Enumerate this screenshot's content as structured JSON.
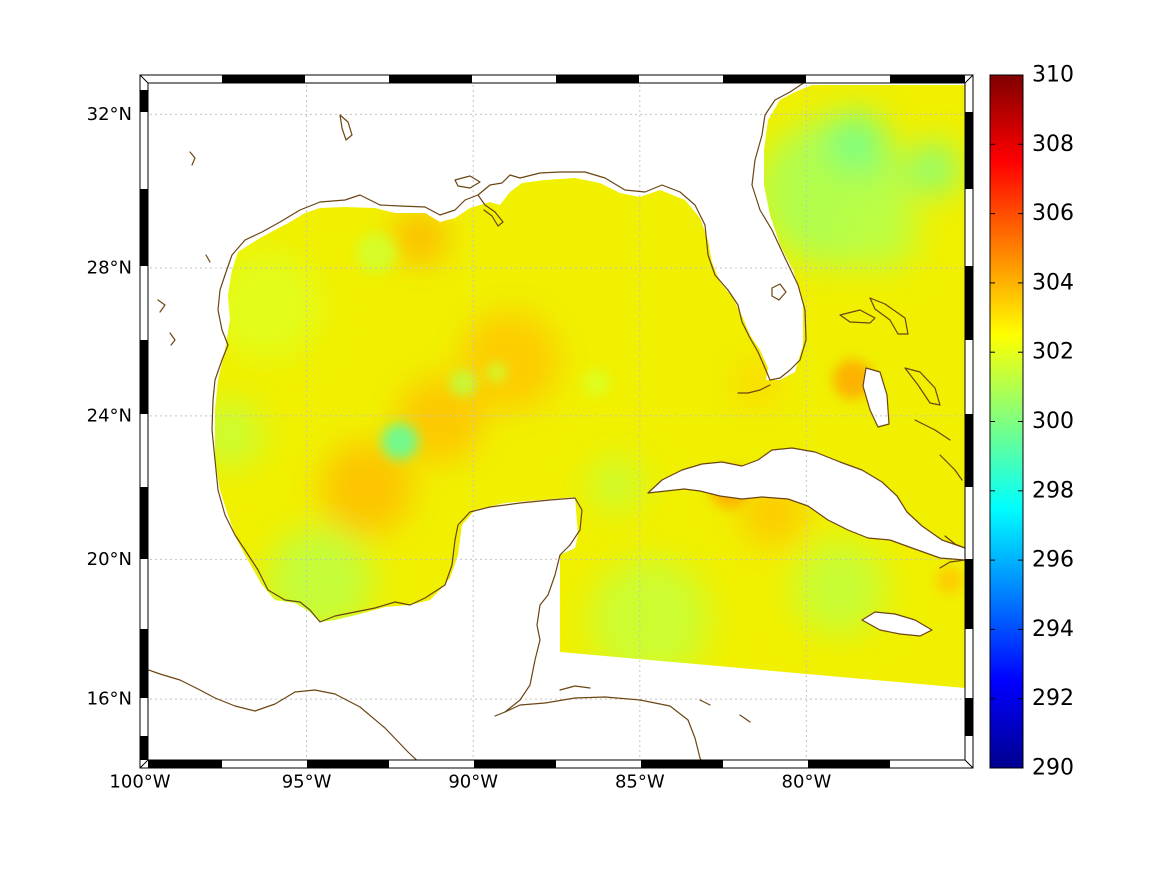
{
  "chart_data": {
    "type": "heatmap",
    "projection": "mercator",
    "x_range": [
      -100,
      -75
    ],
    "y_range": [
      14,
      33
    ],
    "x_ticks": [
      -100,
      -95,
      -90,
      -85,
      -80
    ],
    "x_tick_labels": [
      "100°W",
      "95°W",
      "90°W",
      "85°W",
      "80°W"
    ],
    "y_ticks": [
      32,
      28,
      24,
      20,
      16
    ],
    "y_tick_labels": [
      "32°N",
      "28°N",
      "24°N",
      "20°N",
      "16°N"
    ],
    "grid": true,
    "colorbar": {
      "colormap": "jet",
      "placement": "right",
      "min": 290,
      "max": 310,
      "ticks": [
        310,
        308,
        306,
        304,
        302,
        300,
        298,
        296,
        294,
        292,
        290
      ],
      "tick_labels": [
        "310",
        "308",
        "306",
        "304",
        "302",
        "300",
        "298",
        "296",
        "294",
        "292",
        "290"
      ]
    },
    "field_samples": [
      {
        "lon": -79.2,
        "lat": 30.0,
        "value": 300.8,
        "radius_deg": 2.2
      },
      {
        "lon": -96.2,
        "lat": 27.0,
        "value": 301.9,
        "radius_deg": 1.6
      },
      {
        "lon": -94.6,
        "lat": 19.4,
        "value": 301.2,
        "radius_deg": 1.6
      },
      {
        "lon": -84.7,
        "lat": 18.3,
        "value": 301.4,
        "radius_deg": 1.8
      },
      {
        "lon": -79.0,
        "lat": 19.2,
        "value": 301.3,
        "radius_deg": 1.4
      },
      {
        "lon": -93.2,
        "lat": 22.0,
        "value": 303.8,
        "radius_deg": 1.4
      },
      {
        "lon": -91.0,
        "lat": 23.9,
        "value": 303.7,
        "radius_deg": 1.3
      },
      {
        "lon": -88.9,
        "lat": 25.5,
        "value": 303.6,
        "radius_deg": 1.5
      },
      {
        "lon": -97.3,
        "lat": 23.5,
        "value": 301.4,
        "radius_deg": 1.0
      },
      {
        "lon": -77.8,
        "lat": 29.0,
        "value": 301.2,
        "radius_deg": 1.2
      },
      {
        "lon": -81.0,
        "lat": 21.3,
        "value": 303.6,
        "radius_deg": 1.0
      },
      {
        "lon": -85.7,
        "lat": 22.1,
        "value": 301.4,
        "radius_deg": 0.8
      },
      {
        "lon": -91.6,
        "lat": 28.8,
        "value": 304.0,
        "radius_deg": 0.8
      },
      {
        "lon": -92.9,
        "lat": 28.4,
        "value": 301.6,
        "radius_deg": 0.6
      },
      {
        "lon": -78.5,
        "lat": 31.3,
        "value": 299.8,
        "radius_deg": 0.9
      },
      {
        "lon": -76.2,
        "lat": 30.6,
        "value": 300.0,
        "radius_deg": 0.8
      },
      {
        "lon": -78.6,
        "lat": 25.0,
        "value": 304.2,
        "radius_deg": 0.6
      },
      {
        "lon": -81.5,
        "lat": 24.9,
        "value": 303.3,
        "radius_deg": 0.7
      },
      {
        "lon": -82.3,
        "lat": 22.0,
        "value": 304.2,
        "radius_deg": 0.6
      },
      {
        "lon": -92.2,
        "lat": 23.3,
        "value": 299.3,
        "radius_deg": 0.55
      },
      {
        "lon": -90.3,
        "lat": 24.9,
        "value": 301.2,
        "radius_deg": 0.4
      },
      {
        "lon": -89.3,
        "lat": 25.2,
        "value": 301.5,
        "radius_deg": 0.3
      },
      {
        "lon": -86.3,
        "lat": 24.9,
        "value": 301.8,
        "radius_deg": 0.4
      },
      {
        "lon": -75.7,
        "lat": 19.4,
        "value": 303.6,
        "radius_deg": 0.4
      }
    ]
  },
  "colors": {
    "field_base": "#f0f000",
    "coastline": "#6b4513",
    "grid": "#c4c4c4",
    "frame": "#000000"
  }
}
